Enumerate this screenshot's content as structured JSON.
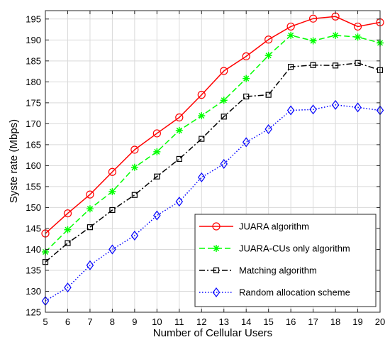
{
  "chart_data": {
    "type": "line",
    "xlabel": "Number of Cellular Users",
    "ylabel": "Syste rate (Mbps)",
    "xlim": [
      5,
      20
    ],
    "ylim": [
      125,
      197
    ],
    "xticks": [
      5,
      6,
      7,
      8,
      9,
      10,
      11,
      12,
      13,
      14,
      15,
      16,
      17,
      18,
      19,
      20
    ],
    "yticks": [
      125,
      130,
      135,
      140,
      145,
      150,
      155,
      160,
      165,
      170,
      175,
      180,
      185,
      190,
      195
    ],
    "grid": true,
    "legend_position": "bottom-right",
    "x": [
      5,
      6,
      7,
      8,
      9,
      10,
      11,
      12,
      13,
      14,
      15,
      16,
      17,
      18,
      19,
      20
    ],
    "series": [
      {
        "name": "JUARA algorithm",
        "color": "#ff0000",
        "line_style": "solid",
        "marker": "circle",
        "values": [
          143.8,
          148.6,
          153.1,
          158.5,
          163.8,
          167.7,
          171.5,
          176.9,
          182.6,
          186.1,
          190.1,
          193.2,
          195.1,
          195.6,
          193.2,
          194.2
        ]
      },
      {
        "name": "JUARA-CUs only algorithm",
        "color": "#00ff00",
        "line_style": "dashed",
        "marker": "asterisk",
        "values": [
          139.4,
          144.7,
          149.7,
          153.8,
          159.6,
          163.3,
          168.4,
          171.9,
          175.6,
          180.8,
          186.3,
          191.1,
          189.8,
          191.1,
          190.7,
          189.3
        ]
      },
      {
        "name": "Matching algorithm",
        "color": "#000000",
        "line_style": "dashdot",
        "marker": "square",
        "values": [
          137.0,
          141.5,
          145.3,
          149.4,
          153.0,
          157.4,
          161.6,
          166.4,
          171.7,
          176.5,
          176.9,
          183.6,
          184.0,
          183.9,
          184.5,
          182.8
        ]
      },
      {
        "name": "Random allocation scheme",
        "color": "#0000ff",
        "line_style": "dotted",
        "marker": "diamond",
        "values": [
          127.7,
          130.9,
          136.2,
          140.0,
          143.3,
          148.1,
          151.4,
          157.2,
          160.4,
          165.6,
          168.7,
          173.2,
          173.4,
          174.5,
          173.9,
          173.2
        ]
      }
    ]
  }
}
